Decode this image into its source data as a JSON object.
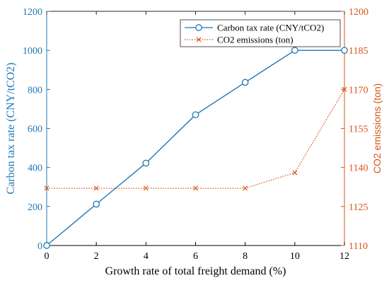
{
  "chart_data": {
    "type": "line",
    "xlabel": "Growth rate of total freight demand (%)",
    "ylabel_left": "Carbon tax rate (CNY/tCO2)",
    "ylabel_right": "CO2 emissions (ton)",
    "xlim": [
      0,
      12
    ],
    "ylim_left": [
      0,
      1200
    ],
    "ylim_right": [
      1110,
      1200
    ],
    "x_ticks": [
      "0",
      "2",
      "4",
      "6",
      "8",
      "10",
      "12"
    ],
    "y_left_ticks": [
      "0",
      "200",
      "400",
      "600",
      "800",
      "1000",
      "1200"
    ],
    "y_right_ticks": [
      "1110",
      "1125",
      "1140",
      "1155",
      "1170",
      "1185",
      "1200"
    ],
    "legend_position": "top-right",
    "grid": false,
    "x": [
      0,
      2,
      4,
      6,
      8,
      10,
      12
    ],
    "series": [
      {
        "name": "Carbon tax rate (CNY/tCO2)",
        "axis": "left",
        "values": [
          0,
          212,
          422,
          670,
          836,
          1000,
          1000
        ],
        "color": "#1f77b4",
        "line_style": "solid",
        "marker": "circle"
      },
      {
        "name": "CO2 emissions (ton)",
        "axis": "right",
        "values": [
          1132,
          1132,
          1132,
          1132,
          1132,
          1138,
          1170
        ],
        "color": "#d95319",
        "line_style": "dotted",
        "marker": "x"
      }
    ],
    "colors": {
      "left_axis": "#1f77b4",
      "right_axis": "#d95319",
      "bottom_axis": "#000000"
    }
  }
}
